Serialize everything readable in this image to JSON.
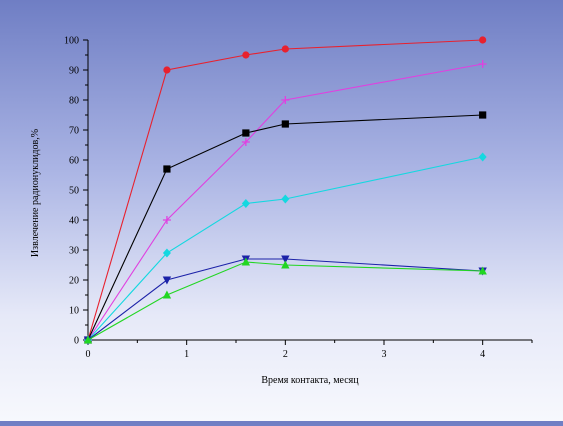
{
  "chart_data": {
    "type": "line",
    "title": "",
    "xlabel": "Время контакта, месяц",
    "ylabel": "Извлечение радионуклидов,%",
    "xlim": [
      0,
      4.5
    ],
    "ylim": [
      0,
      100
    ],
    "xticks": [
      0,
      1,
      2,
      3,
      4
    ],
    "yticks": [
      0,
      10,
      20,
      30,
      40,
      50,
      60,
      70,
      80,
      90,
      100
    ],
    "grid": false,
    "legend": "none",
    "series": [
      {
        "color": "#e8212e",
        "marker": "circle",
        "points": [
          [
            0,
            0
          ],
          [
            0.8,
            90
          ],
          [
            1.6,
            95
          ],
          [
            2,
            97
          ],
          [
            4,
            100
          ]
        ]
      },
      {
        "color": "#e040e0",
        "marker": "plus",
        "points": [
          [
            0,
            0
          ],
          [
            0.8,
            40
          ],
          [
            1.6,
            66
          ],
          [
            2,
            80
          ],
          [
            4,
            92
          ]
        ]
      },
      {
        "color": "#000000",
        "marker": "square",
        "points": [
          [
            0,
            0
          ],
          [
            0.8,
            57
          ],
          [
            1.6,
            69
          ],
          [
            2,
            72
          ],
          [
            4,
            75
          ]
        ]
      },
      {
        "color": "#14d8e0",
        "marker": "diamond",
        "points": [
          [
            0,
            0
          ],
          [
            0.8,
            29
          ],
          [
            1.6,
            45.5
          ],
          [
            2,
            47
          ],
          [
            4,
            61
          ]
        ]
      },
      {
        "color": "#1c22a8",
        "marker": "triangle-down",
        "points": [
          [
            0,
            0
          ],
          [
            0.8,
            20
          ],
          [
            1.6,
            27
          ],
          [
            2,
            27
          ],
          [
            4,
            23
          ]
        ]
      },
      {
        "color": "#22d622",
        "marker": "triangle-up",
        "points": [
          [
            0,
            0
          ],
          [
            0.8,
            15
          ],
          [
            1.6,
            26
          ],
          [
            2,
            25
          ],
          [
            4,
            23
          ]
        ]
      }
    ]
  }
}
